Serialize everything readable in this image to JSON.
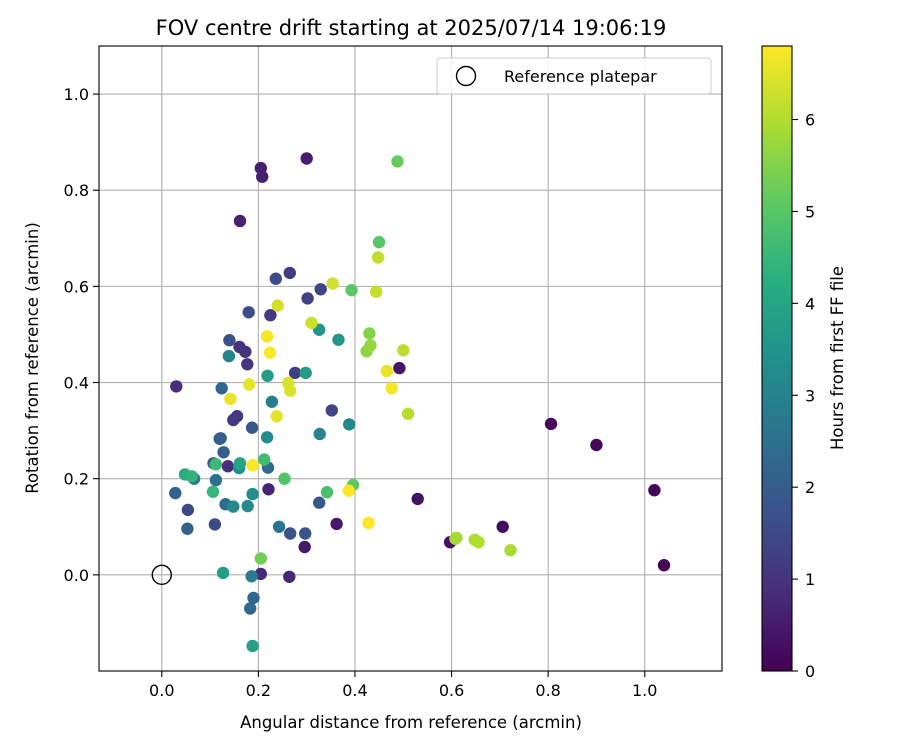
{
  "chart_data": {
    "type": "scatter",
    "title": "FOV centre drift starting at 2025/07/14 19:06:19",
    "xlabel": "Angular distance from reference (arcmin)",
    "ylabel": "Rotation from reference (arcmin)",
    "xlim": [
      -0.13,
      1.16
    ],
    "ylim": [
      -0.2,
      1.1
    ],
    "xticks": [
      "0.0",
      "0.2",
      "0.4",
      "0.6",
      "0.8",
      "1.0"
    ],
    "yticks": [
      "0.0",
      "0.2",
      "0.4",
      "0.6",
      "0.8",
      "1.0"
    ],
    "grid": true,
    "legend": {
      "position": "top-right",
      "entries": [
        "Reference platepar"
      ]
    },
    "reference_point": {
      "x": 0.0,
      "y": 0.0,
      "name": "Reference platepar"
    },
    "colorbar": {
      "label": "Hours from first FF file",
      "colormap": "viridis",
      "range": [
        0,
        6.8
      ],
      "ticks": [
        "0",
        "1",
        "2",
        "3",
        "4",
        "5",
        "6"
      ]
    },
    "points": [
      {
        "x": 1.04,
        "y": 0.02,
        "t": 0.05
      },
      {
        "x": 1.02,
        "y": 0.176,
        "t": 0.1
      },
      {
        "x": 0.9,
        "y": 0.27,
        "t": 0.15
      },
      {
        "x": 0.806,
        "y": 0.314,
        "t": 0.2
      },
      {
        "x": 0.706,
        "y": 0.1,
        "t": 0.25
      },
      {
        "x": 0.597,
        "y": 0.068,
        "t": 0.3
      },
      {
        "x": 0.53,
        "y": 0.158,
        "t": 0.35
      },
      {
        "x": 0.492,
        "y": 0.43,
        "t": 0.4
      },
      {
        "x": 0.362,
        "y": 0.106,
        "t": 0.45
      },
      {
        "x": 0.296,
        "y": 0.058,
        "t": 0.5
      },
      {
        "x": 0.3,
        "y": 0.866,
        "t": 0.55
      },
      {
        "x": 0.205,
        "y": 0.846,
        "t": 0.6
      },
      {
        "x": 0.208,
        "y": 0.828,
        "t": 0.62
      },
      {
        "x": 0.162,
        "y": 0.736,
        "t": 0.65
      },
      {
        "x": 0.221,
        "y": 0.178,
        "t": 0.7
      },
      {
        "x": 0.264,
        "y": -0.004,
        "t": 0.75
      },
      {
        "x": 0.205,
        "y": 0.002,
        "t": 0.8
      },
      {
        "x": 0.03,
        "y": 0.392,
        "t": 0.85
      },
      {
        "x": 0.137,
        "y": 0.226,
        "t": 0.9
      },
      {
        "x": 0.161,
        "y": 0.474,
        "t": 0.95
      },
      {
        "x": 0.173,
        "y": 0.464,
        "t": 1.0
      },
      {
        "x": 0.177,
        "y": 0.438,
        "t": 1.05
      },
      {
        "x": 0.148,
        "y": 0.322,
        "t": 1.1
      },
      {
        "x": 0.156,
        "y": 0.33,
        "t": 1.12
      },
      {
        "x": 0.225,
        "y": 0.54,
        "t": 1.15
      },
      {
        "x": 0.265,
        "y": 0.628,
        "t": 1.2
      },
      {
        "x": 0.276,
        "y": 0.42,
        "t": 1.25
      },
      {
        "x": 0.302,
        "y": 0.575,
        "t": 1.3
      },
      {
        "x": 0.329,
        "y": 0.594,
        "t": 1.35
      },
      {
        "x": 0.352,
        "y": 0.342,
        "t": 1.4
      },
      {
        "x": 0.054,
        "y": 0.135,
        "t": 1.45
      },
      {
        "x": 0.11,
        "y": 0.105,
        "t": 1.5
      },
      {
        "x": 0.236,
        "y": 0.616,
        "t": 1.55
      },
      {
        "x": 0.18,
        "y": 0.546,
        "t": 1.6
      },
      {
        "x": 0.14,
        "y": 0.488,
        "t": 1.65
      },
      {
        "x": 0.266,
        "y": 0.086,
        "t": 1.7
      },
      {
        "x": 0.297,
        "y": 0.086,
        "t": 1.75
      },
      {
        "x": 0.326,
        "y": 0.15,
        "t": 1.8
      },
      {
        "x": 0.187,
        "y": 0.306,
        "t": 1.85
      },
      {
        "x": 0.107,
        "y": 0.232,
        "t": 1.9
      },
      {
        "x": 0.12,
        "y": 0.283,
        "t": 1.95
      },
      {
        "x": 0.122,
        "y": 0.284,
        "t": 2.0
      },
      {
        "x": 0.128,
        "y": 0.255,
        "t": 2.05
      },
      {
        "x": 0.028,
        "y": 0.17,
        "t": 2.1
      },
      {
        "x": 0.053,
        "y": 0.096,
        "t": 2.15
      },
      {
        "x": 0.124,
        "y": 0.388,
        "t": 2.2
      },
      {
        "x": 0.19,
        "y": -0.048,
        "t": 2.25
      },
      {
        "x": 0.183,
        "y": -0.07,
        "t": 2.3
      },
      {
        "x": 0.22,
        "y": 0.223,
        "t": 2.35
      },
      {
        "x": 0.132,
        "y": 0.147,
        "t": 2.4
      },
      {
        "x": 0.112,
        "y": 0.197,
        "t": 2.5
      },
      {
        "x": 0.243,
        "y": 0.1,
        "t": 2.6
      },
      {
        "x": 0.067,
        "y": 0.2,
        "t": 2.7
      },
      {
        "x": 0.186,
        "y": -0.003,
        "t": 2.8
      },
      {
        "x": 0.228,
        "y": 0.36,
        "t": 2.9
      },
      {
        "x": 0.139,
        "y": 0.455,
        "t": 3.0
      },
      {
        "x": 0.327,
        "y": 0.293,
        "t": 3.05
      },
      {
        "x": 0.388,
        "y": 0.313,
        "t": 3.1
      },
      {
        "x": 0.178,
        "y": 0.143,
        "t": 3.15
      },
      {
        "x": 0.148,
        "y": 0.142,
        "t": 3.2
      },
      {
        "x": 0.218,
        "y": 0.286,
        "t": 3.25
      },
      {
        "x": 0.188,
        "y": 0.168,
        "t": 3.3
      },
      {
        "x": 0.16,
        "y": 0.222,
        "t": 3.4
      },
      {
        "x": 0.326,
        "y": 0.51,
        "t": 3.5
      },
      {
        "x": 0.366,
        "y": 0.489,
        "t": 3.6
      },
      {
        "x": 0.298,
        "y": 0.42,
        "t": 3.7
      },
      {
        "x": 0.219,
        "y": 0.414,
        "t": 3.75
      },
      {
        "x": 0.127,
        "y": 0.004,
        "t": 3.8
      },
      {
        "x": 0.188,
        "y": -0.148,
        "t": 3.85
      },
      {
        "x": 0.162,
        "y": 0.232,
        "t": 4.0
      },
      {
        "x": 0.048,
        "y": 0.209,
        "t": 4.2
      },
      {
        "x": 0.062,
        "y": 0.205,
        "t": 4.4
      },
      {
        "x": 0.106,
        "y": 0.173,
        "t": 4.5
      },
      {
        "x": 0.112,
        "y": 0.23,
        "t": 4.6
      },
      {
        "x": 0.212,
        "y": 0.24,
        "t": 4.7
      },
      {
        "x": 0.342,
        "y": 0.172,
        "t": 4.8
      },
      {
        "x": 0.254,
        "y": 0.2,
        "t": 4.9
      },
      {
        "x": 0.45,
        "y": 0.692,
        "t": 5.0
      },
      {
        "x": 0.393,
        "y": 0.592,
        "t": 5.05
      },
      {
        "x": 0.396,
        "y": 0.187,
        "t": 5.1
      },
      {
        "x": 0.488,
        "y": 0.86,
        "t": 5.2
      },
      {
        "x": 0.205,
        "y": 0.034,
        "t": 5.3
      },
      {
        "x": 0.43,
        "y": 0.502,
        "t": 5.5
      },
      {
        "x": 0.424,
        "y": 0.465,
        "t": 5.6
      },
      {
        "x": 0.432,
        "y": 0.477,
        "t": 5.7
      },
      {
        "x": 0.61,
        "y": 0.077,
        "t": 5.8
      },
      {
        "x": 0.608,
        "y": 0.075,
        "t": 5.85
      },
      {
        "x": 0.722,
        "y": 0.051,
        "t": 5.9
      },
      {
        "x": 0.648,
        "y": 0.073,
        "t": 5.95
      },
      {
        "x": 0.656,
        "y": 0.068,
        "t": 6.0
      },
      {
        "x": 0.51,
        "y": 0.335,
        "t": 6.05
      },
      {
        "x": 0.5,
        "y": 0.467,
        "t": 6.1
      },
      {
        "x": 0.448,
        "y": 0.66,
        "t": 6.15
      },
      {
        "x": 0.444,
        "y": 0.589,
        "t": 6.2
      },
      {
        "x": 0.31,
        "y": 0.524,
        "t": 6.25
      },
      {
        "x": 0.354,
        "y": 0.606,
        "t": 6.3
      },
      {
        "x": 0.24,
        "y": 0.56,
        "t": 6.35
      },
      {
        "x": 0.262,
        "y": 0.399,
        "t": 6.4
      },
      {
        "x": 0.266,
        "y": 0.383,
        "t": 6.45
      },
      {
        "x": 0.238,
        "y": 0.33,
        "t": 6.5
      },
      {
        "x": 0.181,
        "y": 0.396,
        "t": 6.55
      },
      {
        "x": 0.142,
        "y": 0.366,
        "t": 6.6
      },
      {
        "x": 0.466,
        "y": 0.424,
        "t": 6.62
      },
      {
        "x": 0.476,
        "y": 0.388,
        "t": 6.7
      },
      {
        "x": 0.218,
        "y": 0.496,
        "t": 6.75
      },
      {
        "x": 0.224,
        "y": 0.462,
        "t": 6.78
      },
      {
        "x": 0.188,
        "y": 0.228,
        "t": 6.8
      },
      {
        "x": 0.387,
        "y": 0.175,
        "t": 6.8
      },
      {
        "x": 0.428,
        "y": 0.108,
        "t": 6.8
      }
    ]
  }
}
